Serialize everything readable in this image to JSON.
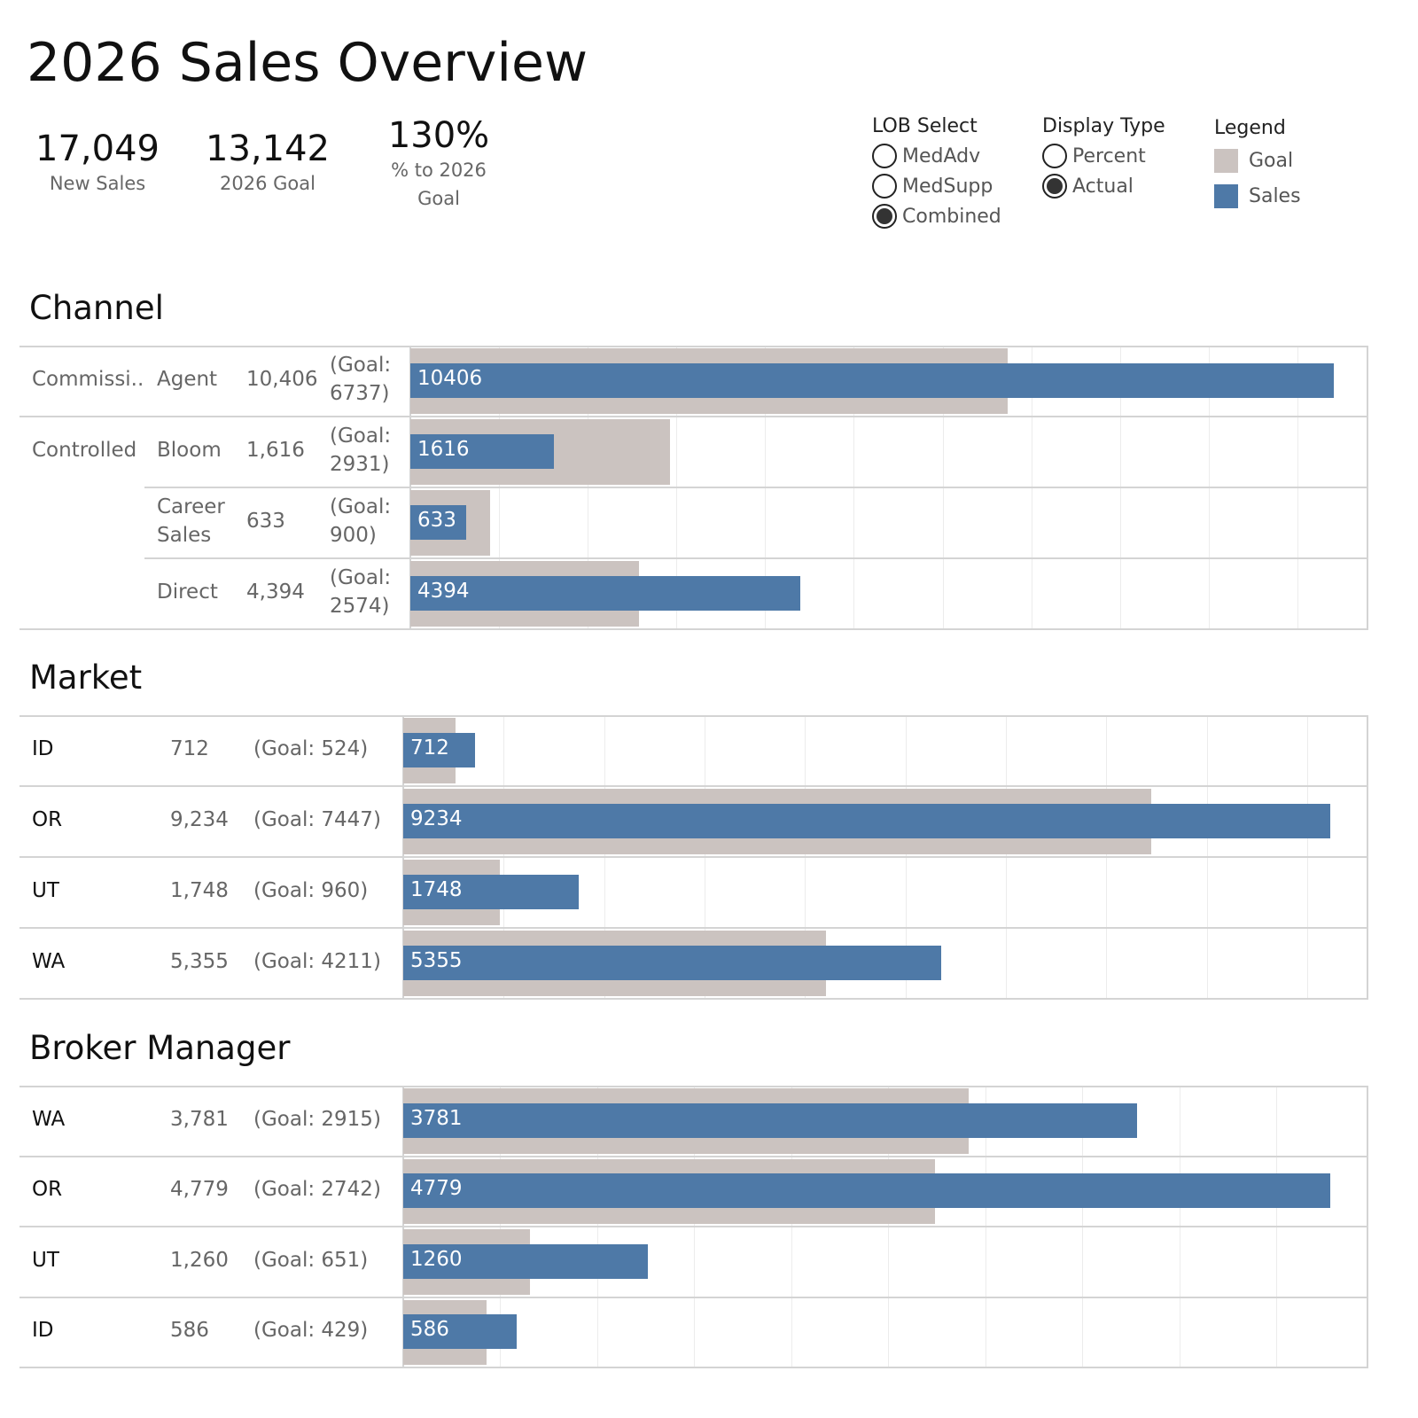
{
  "title": "2026 Sales Overview",
  "kpis": [
    {
      "value": "17,049",
      "label": "New Sales"
    },
    {
      "value": "13,142",
      "label": "2026 Goal"
    },
    {
      "value": "130%",
      "label": "% to 2026 Goal"
    }
  ],
  "lob_select": {
    "heading": "LOB Select",
    "options": [
      {
        "label": "MedAdv",
        "selected": false
      },
      {
        "label": "MedSupp",
        "selected": false
      },
      {
        "label": "Combined",
        "selected": true
      }
    ]
  },
  "display_type": {
    "heading": "Display Type",
    "options": [
      {
        "label": "Percent",
        "selected": false
      },
      {
        "label": "Actual",
        "selected": true
      }
    ]
  },
  "legend": {
    "heading": "Legend",
    "items": [
      {
        "label": "Goal",
        "color": "#cbc3c0"
      },
      {
        "label": "Sales",
        "color": "#4e79a7"
      }
    ]
  },
  "chart_data": [
    {
      "type": "bar",
      "title": "Channel",
      "orientation": "horizontal",
      "groups": [
        "Commissi..",
        "Controlled",
        "",
        ""
      ],
      "categories": [
        "Agent",
        "Bloom",
        "Career Sales",
        "Direct"
      ],
      "series": [
        {
          "name": "Sales",
          "values": [
            10406,
            1616,
            633,
            4394
          ]
        },
        {
          "name": "Goal",
          "values": [
            6737,
            2931,
            900,
            2574
          ]
        }
      ],
      "value_text": [
        "10,406",
        "1,616",
        "633",
        "4,394"
      ],
      "goal_text": [
        "(Goal: 6737)",
        "(Goal: 2931)",
        "(Goal: 900)",
        "(Goal: 2574)"
      ],
      "xlim": [
        0,
        10800
      ],
      "grid_step": 1000
    },
    {
      "type": "bar",
      "title": "Market",
      "orientation": "horizontal",
      "categories": [
        "ID",
        "OR",
        "UT",
        "WA"
      ],
      "series": [
        {
          "name": "Sales",
          "values": [
            712,
            9234,
            1748,
            5355
          ]
        },
        {
          "name": "Goal",
          "values": [
            524,
            7447,
            960,
            4211
          ]
        }
      ],
      "value_text": [
        "712",
        "9,234",
        "1,748",
        "5,355"
      ],
      "goal_text": [
        "(Goal: 524)",
        "(Goal: 7447)",
        "(Goal: 960)",
        "(Goal: 4211)"
      ],
      "xlim": [
        0,
        9610
      ],
      "grid_step": 1000
    },
    {
      "type": "bar",
      "title": "Broker Manager",
      "orientation": "horizontal",
      "categories": [
        "WA",
        "OR",
        "UT",
        "ID"
      ],
      "series": [
        {
          "name": "Sales",
          "values": [
            3781,
            4779,
            1260,
            586
          ]
        },
        {
          "name": "Goal",
          "values": [
            2915,
            2742,
            651,
            429
          ]
        }
      ],
      "value_text": [
        "3,781",
        "4,779",
        "1,260",
        "586"
      ],
      "goal_text": [
        "(Goal: 2915)",
        "(Goal: 2742)",
        "(Goal: 651)",
        "(Goal: 429)"
      ],
      "xlim": [
        0,
        4975
      ],
      "grid_step": 500
    }
  ]
}
